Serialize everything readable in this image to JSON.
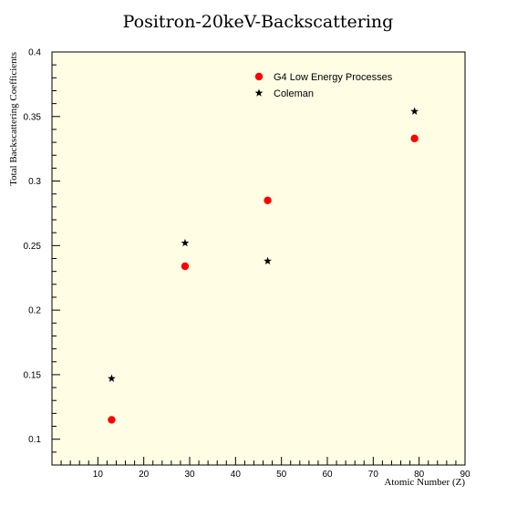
{
  "chart_data": {
    "type": "scatter",
    "title": "Positron-20keV-Backscattering",
    "xlabel": "Atomic Number (Z)",
    "ylabel": "Total Backscattering Coefficients",
    "xlim": [
      0,
      90
    ],
    "ylim": [
      0.08,
      0.4
    ],
    "x_ticks": [
      "10",
      "20",
      "30",
      "40",
      "50",
      "60",
      "70",
      "80",
      "90"
    ],
    "y_ticks": [
      "0.1",
      "0.15",
      "0.2",
      "0.25",
      "0.3",
      "0.35",
      "0.4"
    ],
    "grid": false,
    "legend_position": "top-right",
    "background_color": "#fffde4",
    "series": [
      {
        "name": "G4 Low Energy Processes",
        "marker": "circle",
        "color": "#ff0000",
        "points": [
          {
            "x": 13,
            "y": 0.115
          },
          {
            "x": 29,
            "y": 0.234
          },
          {
            "x": 47,
            "y": 0.285
          },
          {
            "x": 79,
            "y": 0.333
          }
        ]
      },
      {
        "name": "Coleman",
        "marker": "star",
        "color": "#000000",
        "points": [
          {
            "x": 13,
            "y": 0.147
          },
          {
            "x": 29,
            "y": 0.252
          },
          {
            "x": 47,
            "y": 0.238
          },
          {
            "x": 79,
            "y": 0.354
          }
        ]
      }
    ]
  }
}
